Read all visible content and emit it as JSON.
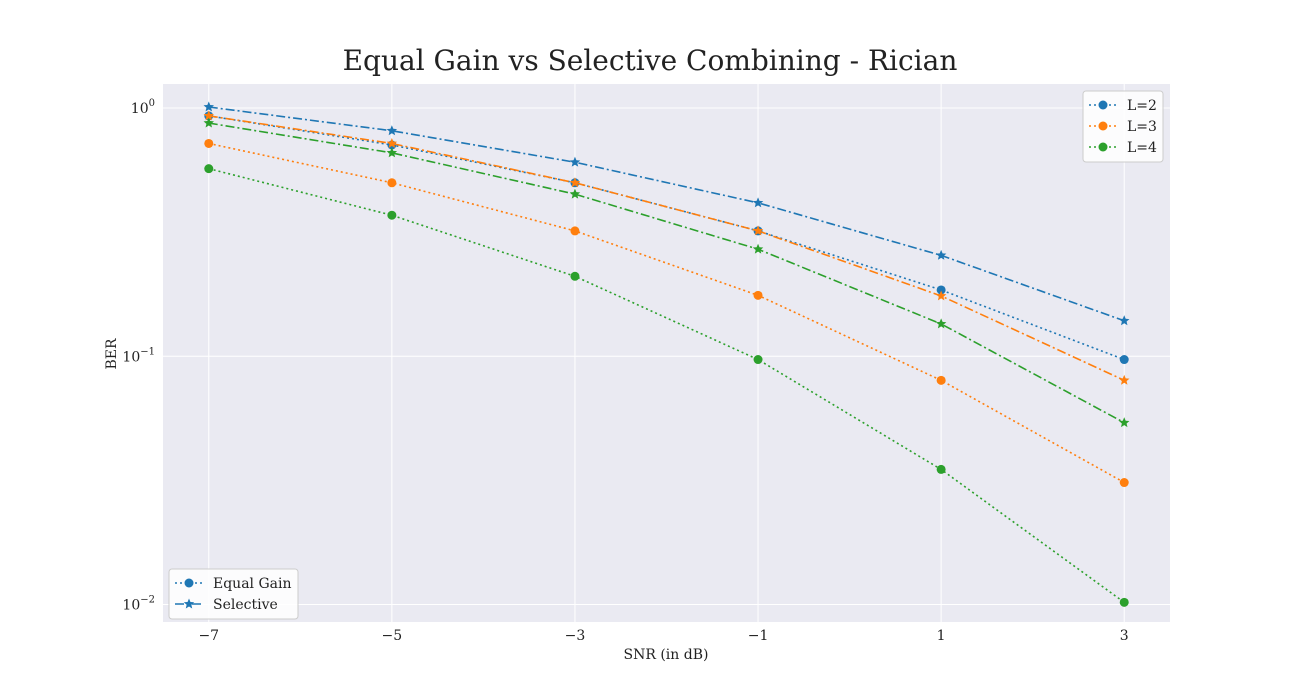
{
  "chart_data": {
    "type": "line",
    "title": "Equal Gain vs Selective Combining - Rician",
    "xlabel": "SNR (in dB)",
    "ylabel": "BER",
    "yscale": "log",
    "xlim": [
      -7.5,
      3.5
    ],
    "ylim": [
      0.0085,
      1.25
    ],
    "x": [
      -7,
      -5,
      -3,
      -1,
      1,
      3
    ],
    "xticks": [
      -7,
      -5,
      -3,
      -1,
      1,
      3
    ],
    "xtick_labels": [
      "−7",
      "−5",
      "−3",
      "−1",
      "1",
      "3"
    ],
    "yticks": [
      1,
      0.1,
      0.01
    ],
    "ytick_labels": [
      {
        "base": "10",
        "exp": "0"
      },
      {
        "base": "10",
        "exp": "−1"
      },
      {
        "base": "10",
        "exp": "−2"
      }
    ],
    "grid": true,
    "series": [
      {
        "scheme": "Equal Gain",
        "L": "L=2",
        "color": "#1f77b4",
        "linestyle": "dotted",
        "marker": "circle",
        "values": [
          0.93,
          0.71,
          0.5,
          0.32,
          0.185,
          0.097
        ]
      },
      {
        "scheme": "Equal Gain",
        "L": "L=3",
        "color": "#ff7f0e",
        "linestyle": "dotted",
        "marker": "circle",
        "values": [
          0.72,
          0.5,
          0.32,
          0.176,
          0.08,
          0.031
        ]
      },
      {
        "scheme": "Equal Gain",
        "L": "L=4",
        "color": "#2ca02c",
        "linestyle": "dotted",
        "marker": "circle",
        "values": [
          0.57,
          0.37,
          0.21,
          0.097,
          0.035,
          0.0102
        ]
      },
      {
        "scheme": "Selective",
        "L": "L=2",
        "color": "#1f77b4",
        "linestyle": "dashdot",
        "marker": "star",
        "values": [
          1.01,
          0.81,
          0.605,
          0.415,
          0.255,
          0.139
        ]
      },
      {
        "scheme": "Selective",
        "L": "L=3",
        "color": "#ff7f0e",
        "linestyle": "dashdot",
        "marker": "star",
        "values": [
          0.93,
          0.72,
          0.5,
          0.32,
          0.175,
          0.08
        ]
      },
      {
        "scheme": "Selective",
        "L": "L=4",
        "color": "#2ca02c",
        "linestyle": "dashdot",
        "marker": "star",
        "values": [
          0.87,
          0.66,
          0.45,
          0.27,
          0.135,
          0.054
        ]
      }
    ],
    "legend_colors": {
      "placement": "upper right",
      "entries": [
        {
          "label": "L=2",
          "color": "#1f77b4"
        },
        {
          "label": "L=3",
          "color": "#ff7f0e"
        },
        {
          "label": "L=4",
          "color": "#2ca02c"
        }
      ]
    },
    "legend_styles": {
      "placement": "lower left",
      "entries": [
        {
          "label": "Equal Gain",
          "color": "#1f77b4",
          "linestyle": "dotted",
          "marker": "circle"
        },
        {
          "label": "Selective",
          "color": "#1f77b4",
          "linestyle": "dashdot",
          "marker": "star"
        }
      ]
    },
    "colors": {
      "plot_background": "#eaeaf2",
      "grid": "#ffffff"
    }
  }
}
